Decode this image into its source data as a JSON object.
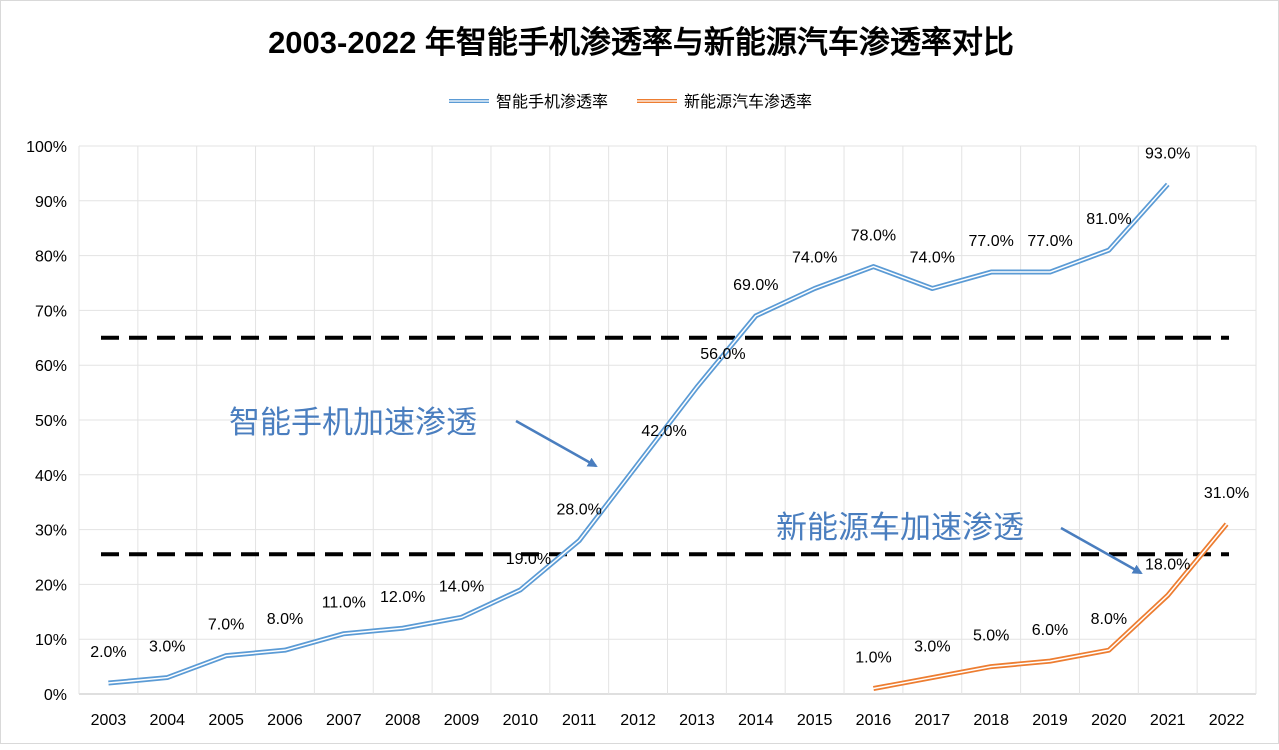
{
  "chart_data": {
    "type": "line",
    "title": "2003-2022 年智能手机渗透率与新能源汽车渗透率对比",
    "categories": [
      "2003",
      "2004",
      "2005",
      "2006",
      "2007",
      "2008",
      "2009",
      "2010",
      "2011",
      "2012",
      "2013",
      "2014",
      "2015",
      "2016",
      "2017",
      "2018",
      "2019",
      "2020",
      "2021",
      "2022"
    ],
    "ylim": [
      0,
      100
    ],
    "yticks": [
      "0%",
      "10%",
      "20%",
      "30%",
      "40%",
      "50%",
      "60%",
      "70%",
      "80%",
      "90%",
      "100%"
    ],
    "grid": true,
    "legend_position": "top",
    "series": [
      {
        "name": "智能手机渗透率",
        "color": "#5b9bd5",
        "values": [
          2,
          3,
          7,
          8,
          11,
          12,
          14,
          19,
          28,
          42,
          56,
          69,
          74,
          78,
          74,
          77,
          77,
          81,
          93,
          null
        ],
        "labels": [
          "2.0%",
          "3.0%",
          "7.0%",
          "8.0%",
          "11.0%",
          "12.0%",
          "14.0%",
          "19.0%",
          "28.0%",
          "42.0%",
          "56.0%",
          "69.0%",
          "74.0%",
          "78.0%",
          "74.0%",
          "77.0%",
          "77.0%",
          "81.0%",
          "93.0%",
          null
        ]
      },
      {
        "name": "新能源汽车渗透率",
        "color": "#ed7d31",
        "values": [
          null,
          null,
          null,
          null,
          null,
          null,
          null,
          null,
          null,
          null,
          null,
          null,
          null,
          1,
          3,
          5,
          6,
          8,
          18,
          31
        ],
        "labels": [
          null,
          null,
          null,
          null,
          null,
          null,
          null,
          null,
          null,
          null,
          null,
          null,
          null,
          "1.0%",
          "3.0%",
          "5.0%",
          "6.0%",
          "8.0%",
          "18.0%",
          "31.0%"
        ]
      }
    ],
    "reference_lines": [
      65,
      25.5
    ],
    "annotations": [
      {
        "text": "智能手机加速渗透",
        "color": "#4a7ebf"
      },
      {
        "text": "新能源车加速渗透",
        "color": "#4a7ebf"
      }
    ]
  }
}
